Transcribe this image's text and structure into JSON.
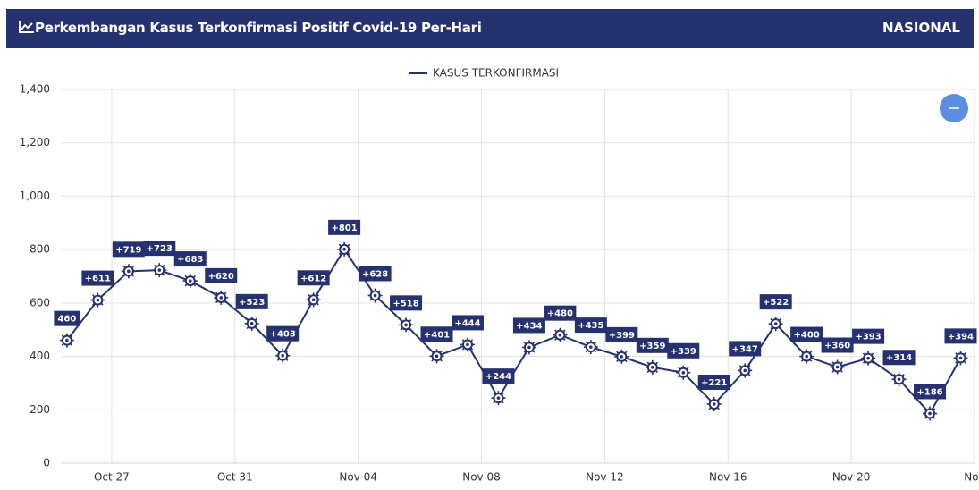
{
  "header": {
    "title": "Perkembangan Kasus Terkonfirmasi Positif Covid-19 Per-Hari",
    "region": "NASIONAL"
  },
  "chart_data": {
    "type": "line",
    "x": [
      0,
      1,
      2,
      3,
      4,
      5,
      6,
      7,
      8,
      9,
      10,
      11,
      12,
      13,
      14,
      15,
      16,
      17,
      18,
      19,
      20,
      21,
      22,
      23,
      24,
      25,
      26,
      27,
      28,
      29
    ],
    "series": [
      {
        "name": "KASUS TERKONFIRMASI",
        "color": "#263170",
        "values": [
          460,
          611,
          719,
          723,
          683,
          620,
          523,
          403,
          612,
          801,
          628,
          518,
          401,
          444,
          244,
          434,
          480,
          435,
          399,
          359,
          339,
          221,
          347,
          522,
          400,
          360,
          393,
          314,
          186,
          394
        ],
        "value_labels": [
          "460",
          "+611",
          "+719",
          "+723",
          "+683",
          "+620",
          "+523",
          "+403",
          "+612",
          "+801",
          "+628",
          "+518",
          "+401",
          "+444",
          "+244",
          "+434",
          "+480",
          "+435",
          "+399",
          "+359",
          "+339",
          "+221",
          "+347",
          "+522",
          "+400",
          "+360",
          "+393",
          "+314",
          "+186",
          "+394"
        ]
      }
    ],
    "xlim": [
      -0.2,
      29.45
    ],
    "xticks": [
      {
        "value": 1.45,
        "label": "Oct 27"
      },
      {
        "value": 5.45,
        "label": "Oct 31"
      },
      {
        "value": 9.45,
        "label": "Nov 04"
      },
      {
        "value": 13.45,
        "label": "Nov 08"
      },
      {
        "value": 17.45,
        "label": "Nov 12"
      },
      {
        "value": 21.45,
        "label": "Nov 16"
      },
      {
        "value": 25.45,
        "label": "Nov 20"
      },
      {
        "value": 29.45,
        "label": "Nov"
      }
    ],
    "ylim": [
      0,
      1400
    ],
    "yticks": [
      0,
      {
        "value": 200,
        "label": "200"
      },
      400,
      600,
      800,
      {
        "value": 1000,
        "label": "1,000"
      },
      {
        "value": 1200,
        "label": "1,200"
      },
      {
        "value": 1400,
        "label": "1,400"
      }
    ],
    "grid": true,
    "legend": "top"
  }
}
